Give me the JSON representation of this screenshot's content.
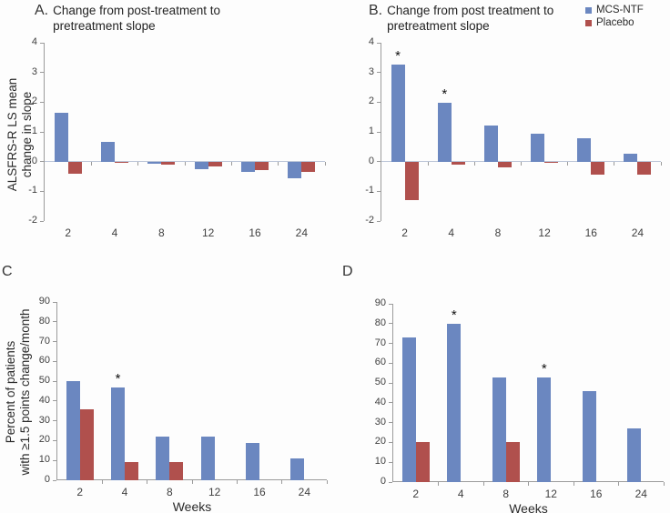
{
  "colors": {
    "mcs_ntf": "#6b87c0",
    "placebo": "#b0504d",
    "axis": "#9b9b9b",
    "zero_line": "#bcc6d8",
    "text": "#2a2a2a"
  },
  "legend": {
    "items": [
      {
        "label": "MCS-NTF",
        "color": "#6b87c0"
      },
      {
        "label": "Placebo",
        "color": "#b0504d"
      }
    ]
  },
  "chart_data": [
    {
      "id": "A",
      "type": "bar",
      "title_letter": "A.",
      "title": "Change from post-treatment to pretreatment slope",
      "ylabel_lines": [
        "ALSFRS-R LS mean",
        "change in slope"
      ],
      "xlabel": "",
      "categories": [
        "2",
        "4",
        "8",
        "12",
        "16",
        "24"
      ],
      "ylim": [
        -2,
        4
      ],
      "ytick_step": 1,
      "legend_position": "top-right-of-figure",
      "grid": false,
      "series": [
        {
          "name": "MCS-NTF",
          "color_key": "mcs_ntf",
          "values": [
            1.65,
            0.65,
            -0.08,
            -0.25,
            -0.35,
            -0.55
          ],
          "stars": []
        },
        {
          "name": "Placebo",
          "color_key": "placebo",
          "values": [
            -0.42,
            -0.03,
            -0.1,
            -0.15,
            -0.3,
            -0.35
          ],
          "stars": []
        }
      ]
    },
    {
      "id": "B",
      "type": "bar",
      "title_letter": "B.",
      "title": "Change from post treatment to pretreatment slope",
      "ylabel_lines": [],
      "xlabel": "",
      "categories": [
        "2",
        "4",
        "8",
        "12",
        "16",
        "24"
      ],
      "ylim": [
        -2,
        4
      ],
      "ytick_step": 1,
      "grid": false,
      "series": [
        {
          "name": "MCS-NTF",
          "color_key": "mcs_ntf",
          "values": [
            3.27,
            1.97,
            1.2,
            0.93,
            0.78,
            0.27
          ],
          "stars": [
            0,
            1
          ]
        },
        {
          "name": "Placebo",
          "color_key": "placebo",
          "values": [
            -1.3,
            -0.1,
            -0.2,
            -0.03,
            -0.45,
            -0.43
          ],
          "stars": []
        }
      ]
    },
    {
      "id": "C",
      "type": "bar",
      "title_letter": "C",
      "title": "",
      "ylabel_lines": [
        "Percent of patients",
        "with ≥1.5 points change/month"
      ],
      "xlabel": "Weeks",
      "categories": [
        "2",
        "4",
        "8",
        "12",
        "16",
        "24"
      ],
      "ylim": [
        0,
        90
      ],
      "ytick_step": 10,
      "grid": false,
      "series": [
        {
          "name": "MCS-NTF",
          "color_key": "mcs_ntf",
          "values": [
            50,
            47,
            22,
            22,
            19,
            11
          ],
          "stars": [
            1
          ]
        },
        {
          "name": "Placebo",
          "color_key": "placebo",
          "values": [
            36,
            9,
            9,
            null,
            null,
            null
          ],
          "stars": []
        }
      ]
    },
    {
      "id": "D",
      "type": "bar",
      "title_letter": "D",
      "title": "",
      "ylabel_lines": [],
      "xlabel": "Weeks",
      "categories": [
        "2",
        "4",
        "8",
        "12",
        "16",
        "24"
      ],
      "ylim": [
        0,
        90
      ],
      "ytick_step": 10,
      "grid": false,
      "series": [
        {
          "name": "MCS-NTF",
          "color_key": "mcs_ntf",
          "values": [
            73,
            80,
            53,
            53,
            46,
            27
          ],
          "stars": [
            1,
            3
          ]
        },
        {
          "name": "Placebo",
          "color_key": "placebo",
          "values": [
            20,
            null,
            20,
            null,
            null,
            null
          ],
          "stars": []
        }
      ]
    }
  ]
}
